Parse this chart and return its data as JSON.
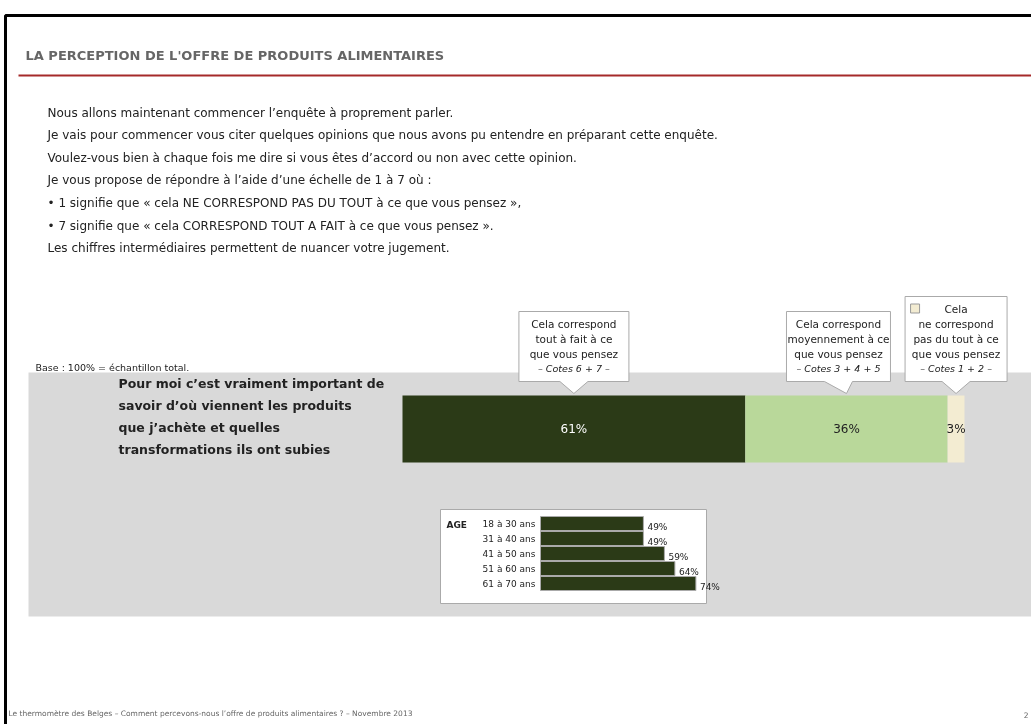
{
  "chart_data": [
    {
      "type": "bar",
      "orientation": "horizontal",
      "stacked": true,
      "title": "LA PERCEPTION DE L'OFFRE DE PRODUITS ALIMENTAIRES",
      "categories": [
        "Pour moi c’est vraiment important de savoir d’où viennent les produits que j’achète et quelles transformations ils ont subies"
      ],
      "series": [
        {
          "name": "Cela correspond\ntout à fait à ce\nque vous pensez\n– Cotes 6 + 7 –",
          "color": "#2b3a17",
          "values": [
            61
          ],
          "value_labels": [
            "61%"
          ]
        },
        {
          "name": "Cela correspond\nmoyennement à ce\nque vous pensez\n– Cotes 3 + 4 + 5",
          "color": "#b9d89a",
          "values": [
            36
          ],
          "value_labels": [
            "36%"
          ]
        },
        {
          "name": "Cela\nne correspond\npas du tout à ce\nque vous pensez\n– Cotes 1 + 2 –",
          "color": "#f3ecd2",
          "values": [
            3
          ],
          "value_labels": [
            "3%"
          ]
        }
      ],
      "annotations": [
        "Nous allons maintenant commencer l’enquête à proprement parler.",
        "Je vais pour commencer vous citer quelques opinions que nous avons pu entendre en préparant cette enquête.",
        "Voulez-vous bien à chaque fois me dire si vous êtes d’accord ou non avec cette opinion.",
        "Je vous propose de répondre à l’aide d’une échelle de 1 à 7 où :",
        "• 1 signifie que «  cela NE CORRESPOND PAS DU TOUT à ce que vous pensez »,",
        "• 7 signifie que «  cela CORRESPOND TOUT A FAIT à ce que vous pensez ».",
        "Les chiffres intermédiaires permettent de nuancer votre jugement.",
        "Base : 100% = échantillon total.",
        "Le thermomètre des Belges – Comment percevons-nous l’offre de produits alimentaires ? – Novembre 2013",
        "2"
      ]
    },
    {
      "type": "bar",
      "orientation": "horizontal",
      "title": "AGE",
      "categories": [
        "18 à 30 ans",
        "31 à 40 ans",
        "41 à 50 ans",
        "51 à 60 ans",
        "61 à 70 ans"
      ],
      "values": [
        49,
        49,
        59,
        64,
        74
      ],
      "color": "#2b3a17",
      "value_labels": [
        "49%",
        "49%",
        "59%",
        "64%",
        "74%"
      ]
    }
  ]
}
